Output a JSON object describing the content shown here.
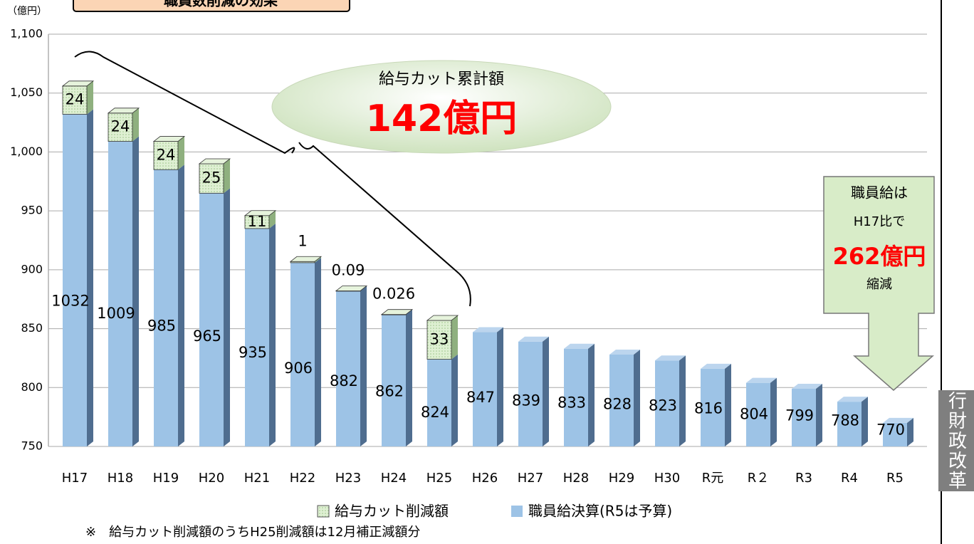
{
  "chart_data": {
    "type": "stacked-bar-3d",
    "title": "職員数削減の効果",
    "y_unit": "（億円）",
    "categories": [
      "H17",
      "H18",
      "H19",
      "H20",
      "H21",
      "H22",
      "H23",
      "H24",
      "H25",
      "H26",
      "H27",
      "H28",
      "H29",
      "H30",
      "R元",
      "R２",
      "R3",
      "R4",
      "R5"
    ],
    "series": [
      {
        "name": "給与カット削減額",
        "color": "#d6ecc9",
        "values": [
          24,
          24,
          24,
          25,
          11,
          1,
          0.09,
          0.026,
          33,
          null,
          null,
          null,
          null,
          null,
          null,
          null,
          null,
          null,
          null
        ]
      },
      {
        "name": "職員給決算(R5は予算)",
        "color": "#9dc3e6",
        "values": [
          1032,
          1009,
          985,
          965,
          935,
          906,
          882,
          862,
          824,
          847,
          839,
          833,
          828,
          823,
          816,
          804,
          799,
          788,
          770
        ]
      }
    ],
    "ylim": [
      750,
      1100
    ],
    "yticks": [
      750,
      800,
      850,
      900,
      950,
      {
        "value": 1000,
        "label": "1,000"
      },
      {
        "value": 1050,
        "label": "1,050"
      },
      {
        "value": 1100,
        "label": "1,100"
      }
    ],
    "grid": true,
    "annotations": [
      "給与カット累計額",
      "142億円",
      "職員給は",
      "H17比で",
      "262億円",
      "縮減"
    ],
    "footnote": "※　給与カット削減額のうちH25削減額は12月補正減額分",
    "side_label": "行財政改革"
  }
}
